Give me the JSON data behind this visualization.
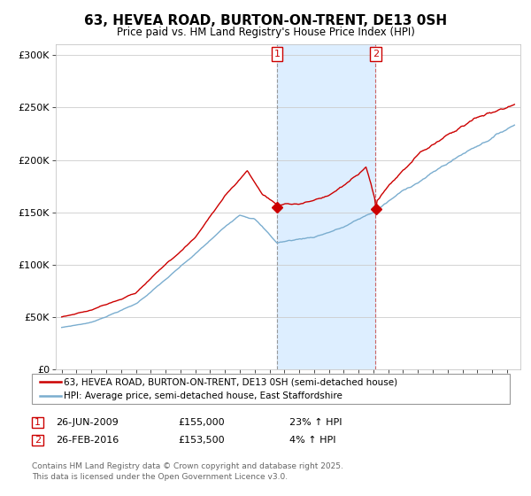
{
  "title": "63, HEVEA ROAD, BURTON-ON-TRENT, DE13 0SH",
  "subtitle": "Price paid vs. HM Land Registry's House Price Index (HPI)",
  "ylim": [
    0,
    310000
  ],
  "yticks": [
    0,
    50000,
    100000,
    150000,
    200000,
    250000,
    300000
  ],
  "ytick_labels": [
    "£0",
    "£50K",
    "£100K",
    "£150K",
    "£200K",
    "£250K",
    "£300K"
  ],
  "red_line_color": "#cc0000",
  "blue_line_color": "#7aadcf",
  "shade_color": "#ddeeff",
  "dashed_line1_color": "#aaaaaa",
  "dashed_line2_color": "#cc6666",
  "marker1_year": 2009.5,
  "marker2_year": 2016.15,
  "marker1_price": 155000,
  "marker2_price": 153500,
  "marker1_date": "26-JUN-2009",
  "marker2_date": "26-FEB-2016",
  "marker1_hpi": "23% ↑ HPI",
  "marker2_hpi": "4% ↑ HPI",
  "marker1_price_str": "£155,000",
  "marker2_price_str": "£153,500",
  "legend_label1": "63, HEVEA ROAD, BURTON-ON-TRENT, DE13 0SH (semi-detached house)",
  "legend_label2": "HPI: Average price, semi-detached house, East Staffordshire",
  "footer": "Contains HM Land Registry data © Crown copyright and database right 2025.\nThis data is licensed under the Open Government Licence v3.0.",
  "background_color": "#ffffff",
  "grid_color": "#cccccc"
}
